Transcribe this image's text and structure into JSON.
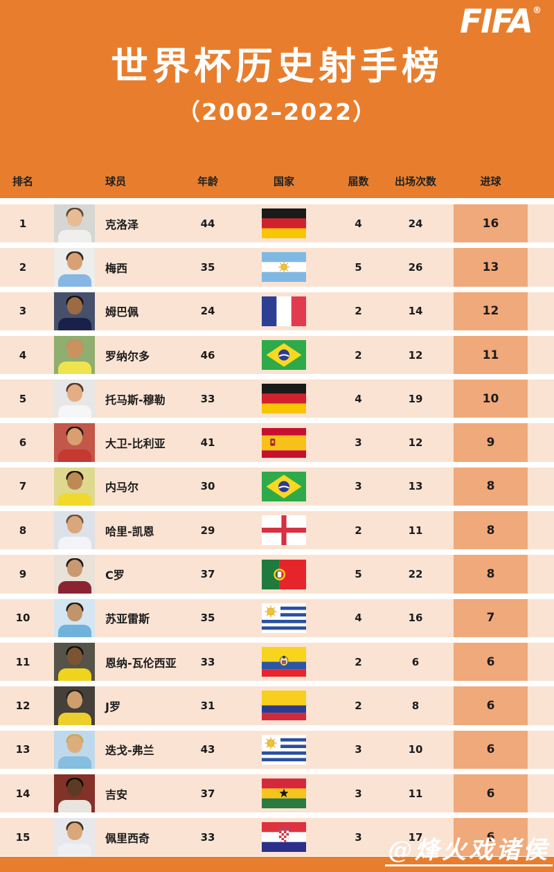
{
  "colors": {
    "accent_orange": "#E87E2D",
    "row_peach": "#FAE3D3",
    "goal_box_orange": "#F0A97A",
    "text_dark": "#1b1b1b",
    "text_white": "#ffffff"
  },
  "header": {
    "brand": "FIFA",
    "brand_reg": "®",
    "title": "世界杯历史射手榜",
    "subtitle": "（2002–2022）"
  },
  "columns": {
    "rank": "排名",
    "player": "球员",
    "age": "年龄",
    "country": "国家",
    "editions": "届数",
    "appearances": "出场次数",
    "goals": "进球"
  },
  "watermark": {
    "text": "@烽火戏诸侯"
  },
  "rows": [
    {
      "rank": "1",
      "name": "克洛泽",
      "age": "44",
      "flag": "germany",
      "editions": "4",
      "apps": "24",
      "goals": "16",
      "photo": {
        "bg": "#d6d6d4",
        "shirt": "#efefed",
        "skin": "#e9bb93",
        "hair": "#5a4632"
      }
    },
    {
      "rank": "2",
      "name": "梅西",
      "age": "35",
      "flag": "argentina",
      "editions": "5",
      "apps": "26",
      "goals": "13",
      "photo": {
        "bg": "#ededeb",
        "shirt": "#86b7e4",
        "skin": "#d9a173",
        "hair": "#2e2620"
      }
    },
    {
      "rank": "3",
      "name": "姆巴佩",
      "age": "24",
      "flag": "france",
      "editions": "2",
      "apps": "14",
      "goals": "12",
      "photo": {
        "bg": "#46506b",
        "shirt": "#19214a",
        "skin": "#9c6b43",
        "hair": "#17110c"
      }
    },
    {
      "rank": "4",
      "name": "罗纳尔多",
      "age": "46",
      "flag": "brazil",
      "editions": "2",
      "apps": "12",
      "goals": "11",
      "photo": {
        "bg": "#8fae6f",
        "shirt": "#f0e44e",
        "skin": "#cb9260",
        "hair": "#c09161"
      }
    },
    {
      "rank": "5",
      "name": "托马斯-穆勒",
      "age": "33",
      "flag": "germany",
      "editions": "4",
      "apps": "19",
      "goals": "10",
      "photo": {
        "bg": "#e7e7e7",
        "shirt": "#f6f6f6",
        "skin": "#e5ad83",
        "hair": "#4a3a2a"
      }
    },
    {
      "rank": "6",
      "name": "大卫-比利亚",
      "age": "41",
      "flag": "spain",
      "editions": "3",
      "apps": "12",
      "goals": "9",
      "photo": {
        "bg": "#c2574a",
        "shirt": "#c63832",
        "skin": "#d99f6e",
        "hair": "#241a12"
      }
    },
    {
      "rank": "7",
      "name": "内马尔",
      "age": "30",
      "flag": "brazil",
      "editions": "3",
      "apps": "13",
      "goals": "8",
      "photo": {
        "bg": "#ded98f",
        "shirt": "#f2d829",
        "skin": "#bd8a55",
        "hair": "#1d150f"
      }
    },
    {
      "rank": "8",
      "name": "哈里-凯恩",
      "age": "29",
      "flag": "england",
      "editions": "2",
      "apps": "11",
      "goals": "8",
      "photo": {
        "bg": "#dde1e8",
        "shirt": "#f2f4f7",
        "skin": "#daa67b",
        "hair": "#6b513a"
      }
    },
    {
      "rank": "9",
      "name": "C罗",
      "age": "37",
      "flag": "portugal",
      "editions": "5",
      "apps": "22",
      "goals": "8",
      "photo": {
        "bg": "#e9e2d8",
        "shirt": "#8c2332",
        "skin": "#c99a72",
        "hair": "#1f1812"
      }
    },
    {
      "rank": "10",
      "name": "苏亚雷斯",
      "age": "35",
      "flag": "uruguay",
      "editions": "4",
      "apps": "16",
      "goals": "7",
      "photo": {
        "bg": "#d3e6f2",
        "shirt": "#6fb3dc",
        "skin": "#c2946a",
        "hair": "#221a14"
      }
    },
    {
      "rank": "11",
      "name": "恩纳-瓦伦西亚",
      "age": "33",
      "flag": "ecuador",
      "editions": "2",
      "apps": "6",
      "goals": "6",
      "photo": {
        "bg": "#565349",
        "shirt": "#efd41d",
        "skin": "#7c5434",
        "hair": "#12100d"
      }
    },
    {
      "rank": "12",
      "name": "J罗",
      "age": "31",
      "flag": "colombia",
      "editions": "2",
      "apps": "8",
      "goals": "6",
      "photo": {
        "bg": "#45403a",
        "shirt": "#eccf2c",
        "skin": "#cf9e6c",
        "hair": "#2a211a"
      }
    },
    {
      "rank": "13",
      "name": "迭戈-弗兰",
      "age": "43",
      "flag": "uruguay",
      "editions": "3",
      "apps": "10",
      "goals": "6",
      "photo": {
        "bg": "#bed9ec",
        "shirt": "#85bede",
        "skin": "#dcae7e",
        "hair": "#caa84e"
      }
    },
    {
      "rank": "14",
      "name": "吉安",
      "age": "37",
      "flag": "ghana",
      "editions": "3",
      "apps": "11",
      "goals": "6",
      "photo": {
        "bg": "#833129",
        "shirt": "#e9e4dd",
        "skin": "#5d3a22",
        "hair": "#0e0b08"
      }
    },
    {
      "rank": "15",
      "name": "佩里西奇",
      "age": "33",
      "flag": "croatia",
      "editions": "3",
      "apps": "17",
      "goals": "6",
      "photo": {
        "bg": "#e8e8ec",
        "shirt": "#eef0f4",
        "skin": "#d9a77a",
        "hair": "#3d2f22"
      }
    }
  ]
}
